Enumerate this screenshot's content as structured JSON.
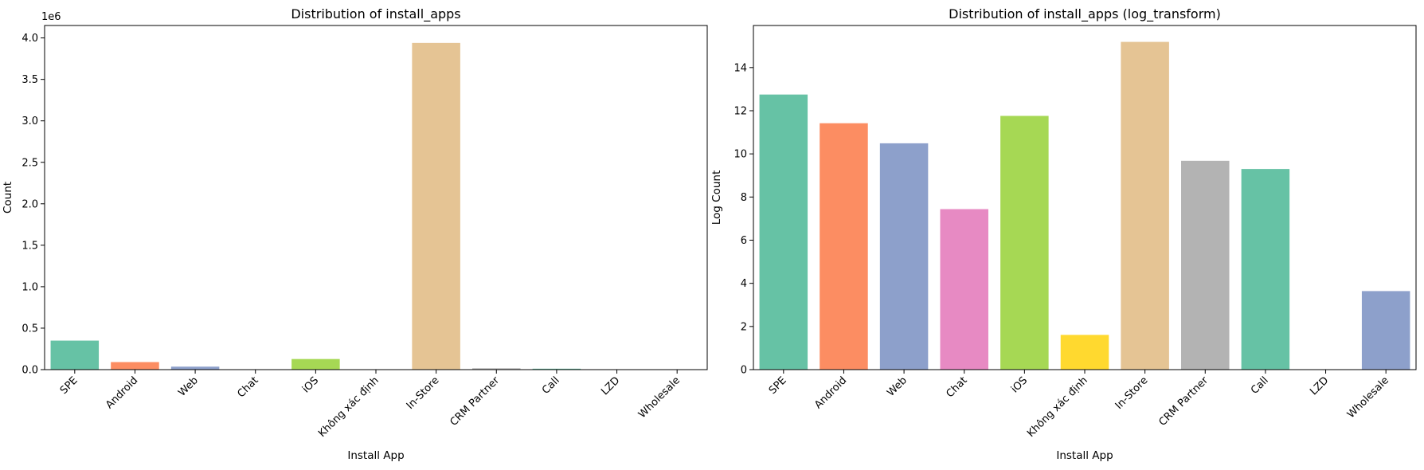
{
  "chart_data": [
    {
      "type": "bar",
      "title": "Distribution of install_apps",
      "xlabel": "Install App",
      "ylabel": "Count",
      "y_offset_label": "1e6",
      "categories": [
        "SPE",
        "Android",
        "Web",
        "Chat",
        "iOS",
        "Không xác định",
        "In-Store",
        "CRM Partner",
        "Call",
        "LZD",
        "Wholesale"
      ],
      "values": [
        350000,
        91000,
        36000,
        1700,
        128000,
        5,
        3940000,
        16000,
        11000,
        1,
        38
      ],
      "ylim": [
        0,
        4150000
      ],
      "yticks": [
        0,
        500000,
        1000000,
        1500000,
        2000000,
        2500000,
        3000000,
        3500000,
        4000000
      ],
      "ytick_labels": [
        "0.0",
        "0.5",
        "1.0",
        "1.5",
        "2.0",
        "2.5",
        "3.0",
        "3.5",
        "4.0"
      ],
      "grid": false,
      "colors": [
        "#66c2a5",
        "#fc8d62",
        "#8da0cb",
        "#e78ac3",
        "#a6d854",
        "#ffd92f",
        "#e5c494",
        "#b3b3b3",
        "#66c2a5",
        "#fc8d62",
        "#8da0cb"
      ]
    },
    {
      "type": "bar",
      "title": "Distribution of install_apps (log_transform)",
      "xlabel": "Install App",
      "ylabel": "Log Count",
      "categories": [
        "SPE",
        "Android",
        "Web",
        "Chat",
        "iOS",
        "Không xác định",
        "In-Store",
        "CRM Partner",
        "Call",
        "LZD",
        "Wholesale"
      ],
      "values": [
        12.75,
        11.42,
        10.49,
        7.44,
        11.76,
        1.61,
        15.19,
        9.68,
        9.3,
        0.0,
        3.64
      ],
      "ylim": [
        0,
        15.95
      ],
      "yticks": [
        0,
        2,
        4,
        6,
        8,
        10,
        12,
        14
      ],
      "ytick_labels": [
        "0",
        "2",
        "4",
        "6",
        "8",
        "10",
        "12",
        "14"
      ],
      "grid": false,
      "colors": [
        "#66c2a5",
        "#fc8d62",
        "#8da0cb",
        "#e78ac3",
        "#a6d854",
        "#ffd92f",
        "#e5c494",
        "#b3b3b3",
        "#66c2a5",
        "#fc8d62",
        "#8da0cb"
      ]
    }
  ]
}
